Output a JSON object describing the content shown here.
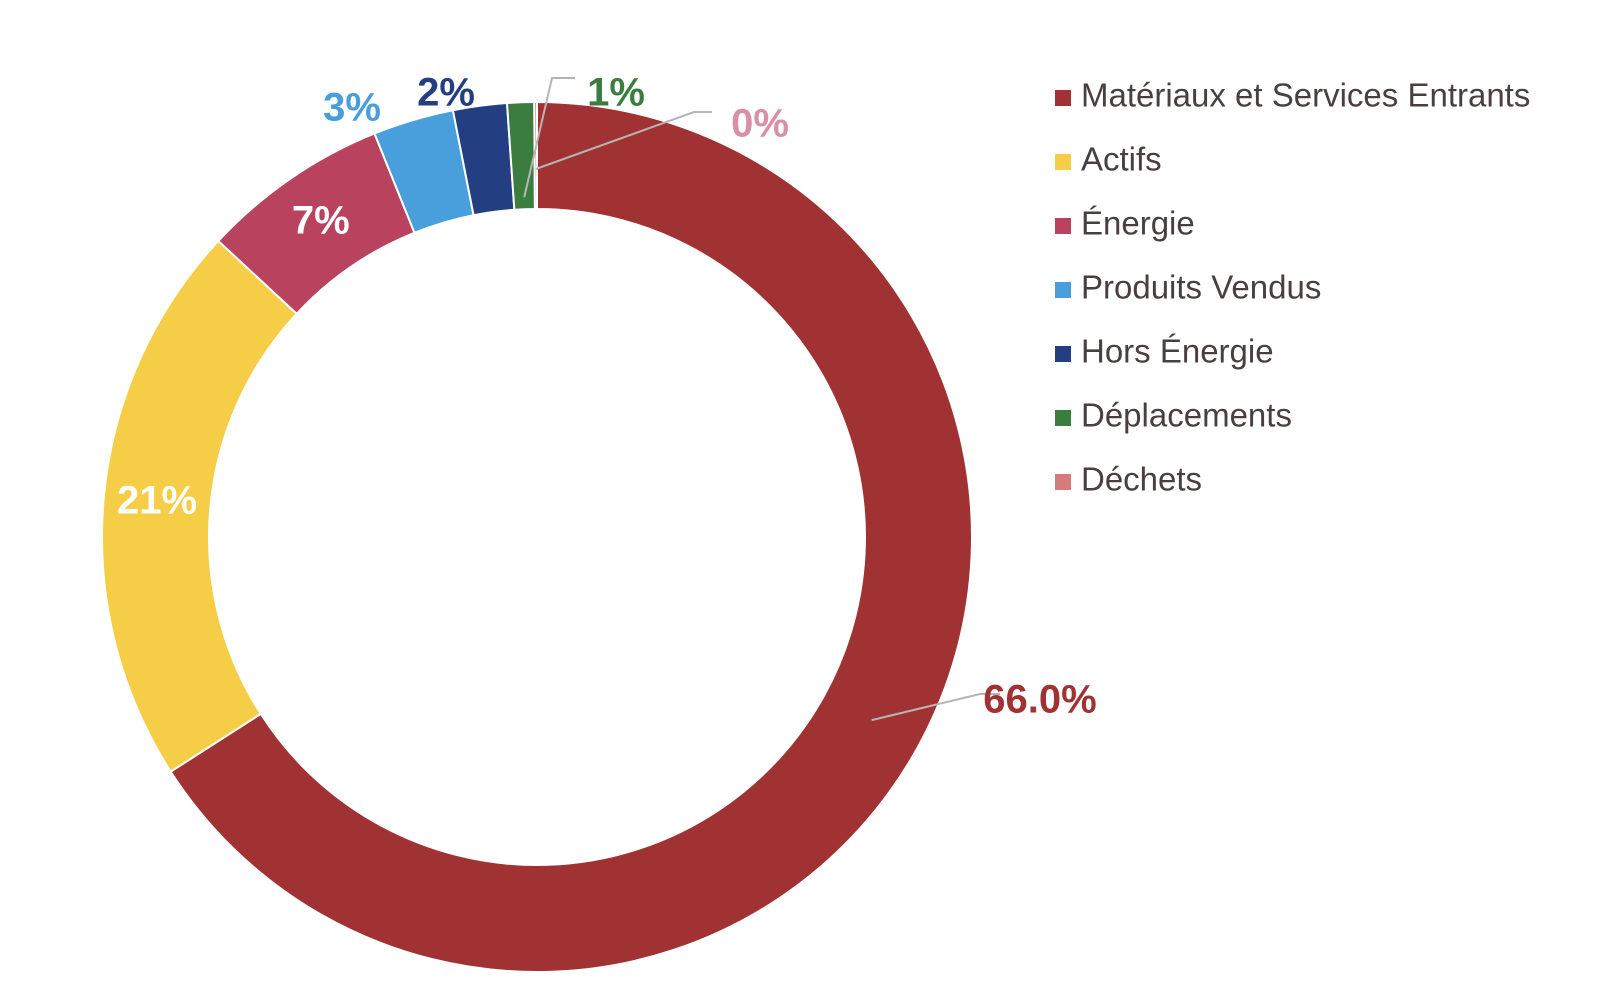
{
  "chart_data": {
    "type": "pie",
    "style": "donut",
    "categories": [
      "Matériaux et Services Entrants",
      "Actifs",
      "Énergie",
      "Produits Vendus",
      "Hors Énergie",
      "Déplacements",
      "Déchets"
    ],
    "values": [
      66.0,
      21,
      7,
      3,
      2,
      1,
      0.1
    ],
    "data_labels": [
      "66.0%",
      "21%",
      "7%",
      "3%",
      "2%",
      "1%",
      "0%"
    ],
    "colors": [
      "#a03233",
      "#f5cd47",
      "#b9435f",
      "#489fdb",
      "#233f82",
      "#3a7d3e",
      "#d67b7b"
    ],
    "label_colors": [
      "#a03233",
      "#ffffff",
      "#ffffff",
      "#489fdb",
      "#233f82",
      "#3a7d3e",
      "#d98fa8"
    ],
    "legend_position": "right",
    "start_angle": "top, clockwise"
  }
}
